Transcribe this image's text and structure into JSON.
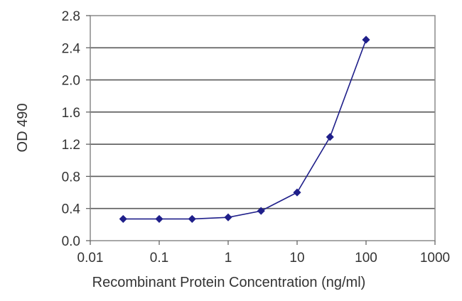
{
  "chart_data": {
    "type": "line",
    "title": "",
    "xlabel": "Recombinant Protein Concentration (ng/ml)",
    "ylabel": "OD 490",
    "x_scale": "log",
    "xlim": [
      0.01,
      1000
    ],
    "ylim": [
      0.0,
      2.8
    ],
    "x_ticks": [
      "0.01",
      "0.1",
      "1",
      "10",
      "100",
      "1000"
    ],
    "y_ticks": [
      "0.0",
      "0.4",
      "0.8",
      "1.2",
      "1.6",
      "2.0",
      "2.4",
      "2.8"
    ],
    "grid": "horizontal",
    "legend": "none",
    "series": [
      {
        "color": "#1f1f8a",
        "marker": "diamond",
        "x": [
          0.03,
          0.1,
          0.3,
          1,
          3,
          10,
          30,
          100
        ],
        "y": [
          0.27,
          0.27,
          0.27,
          0.29,
          0.37,
          0.6,
          1.29,
          2.5
        ]
      }
    ]
  }
}
